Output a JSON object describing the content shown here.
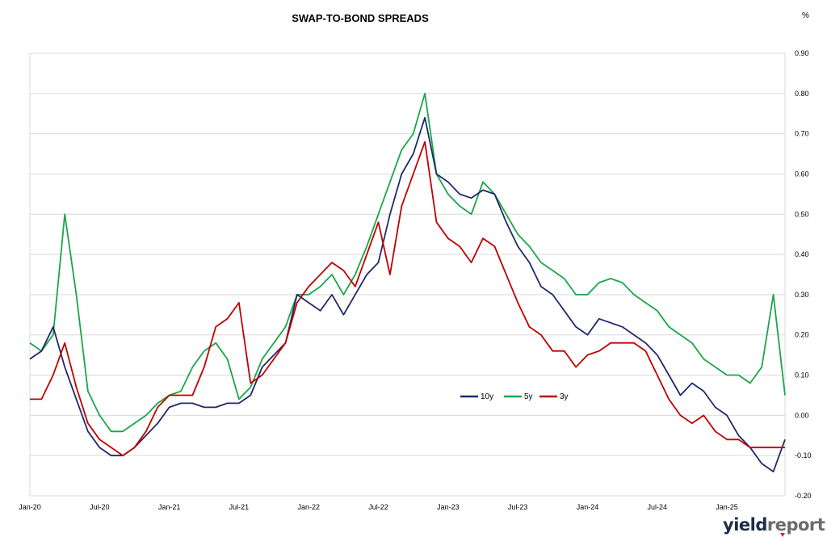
{
  "chart_data": {
    "type": "line",
    "title": "SWAP-TO-BOND SPREADS",
    "unit_label": "%",
    "xlabel": "",
    "ylabel": "",
    "x_ticks": [
      "Jan-20",
      "Jul-20",
      "Jan-21",
      "Jul-21",
      "Jan-22",
      "Jul-22",
      "Jan-23",
      "Jul-23",
      "Jan-24",
      "Jul-24",
      "Jan-25"
    ],
    "y_ticks": [
      "0.90",
      "0.80",
      "0.70",
      "0.60",
      "0.50",
      "0.40",
      "0.30",
      "0.20",
      "0.10",
      "0.00",
      "-0.10",
      "-0.20"
    ],
    "ylim": [
      -0.2,
      0.9
    ],
    "xlim": [
      "2020-01",
      "2025-06"
    ],
    "grid": "horizontal",
    "legend_position": "center-right",
    "x": [
      "2020-01",
      "2020-02",
      "2020-03",
      "2020-04",
      "2020-05",
      "2020-06",
      "2020-07",
      "2020-08",
      "2020-09",
      "2020-10",
      "2020-11",
      "2020-12",
      "2021-01",
      "2021-02",
      "2021-03",
      "2021-04",
      "2021-05",
      "2021-06",
      "2021-07",
      "2021-08",
      "2021-09",
      "2021-10",
      "2021-11",
      "2021-12",
      "2022-01",
      "2022-02",
      "2022-03",
      "2022-04",
      "2022-05",
      "2022-06",
      "2022-07",
      "2022-08",
      "2022-09",
      "2022-10",
      "2022-11",
      "2022-12",
      "2023-01",
      "2023-02",
      "2023-03",
      "2023-04",
      "2023-05",
      "2023-06",
      "2023-07",
      "2023-08",
      "2023-09",
      "2023-10",
      "2023-11",
      "2023-12",
      "2024-01",
      "2024-02",
      "2024-03",
      "2024-04",
      "2024-05",
      "2024-06",
      "2024-07",
      "2024-08",
      "2024-09",
      "2024-10",
      "2024-11",
      "2024-12",
      "2025-01",
      "2025-02",
      "2025-03",
      "2025-04",
      "2025-05",
      "2025-06"
    ],
    "series": [
      {
        "name": "10y",
        "color": "#1f2a6b",
        "values": [
          0.14,
          0.16,
          0.22,
          0.12,
          0.04,
          -0.04,
          -0.08,
          -0.1,
          -0.1,
          -0.08,
          -0.05,
          -0.02,
          0.02,
          0.03,
          0.03,
          0.02,
          0.02,
          0.03,
          0.03,
          0.05,
          0.12,
          0.15,
          0.18,
          0.3,
          0.28,
          0.26,
          0.3,
          0.25,
          0.3,
          0.35,
          0.38,
          0.5,
          0.6,
          0.65,
          0.74,
          0.6,
          0.58,
          0.55,
          0.54,
          0.56,
          0.55,
          0.48,
          0.42,
          0.38,
          0.32,
          0.3,
          0.26,
          0.22,
          0.2,
          0.24,
          0.23,
          0.22,
          0.2,
          0.18,
          0.15,
          0.1,
          0.05,
          0.08,
          0.06,
          0.02,
          0.0,
          -0.05,
          -0.08,
          -0.12,
          -0.14,
          -0.06
        ]
      },
      {
        "name": "5y",
        "color": "#1aa64a",
        "values": [
          0.18,
          0.16,
          0.2,
          0.5,
          0.3,
          0.06,
          0.0,
          -0.04,
          -0.04,
          -0.02,
          0.0,
          0.03,
          0.05,
          0.06,
          0.12,
          0.16,
          0.18,
          0.14,
          0.04,
          0.07,
          0.14,
          0.18,
          0.22,
          0.3,
          0.3,
          0.32,
          0.35,
          0.3,
          0.35,
          0.42,
          0.5,
          0.58,
          0.66,
          0.7,
          0.8,
          0.6,
          0.55,
          0.52,
          0.5,
          0.58,
          0.55,
          0.5,
          0.45,
          0.42,
          0.38,
          0.36,
          0.34,
          0.3,
          0.3,
          0.33,
          0.34,
          0.33,
          0.3,
          0.28,
          0.26,
          0.22,
          0.2,
          0.18,
          0.14,
          0.12,
          0.1,
          0.1,
          0.08,
          0.12,
          0.3,
          0.05
        ]
      },
      {
        "name": "3y",
        "color": "#c00000",
        "values": [
          0.04,
          0.04,
          0.1,
          0.18,
          0.07,
          -0.02,
          -0.06,
          -0.08,
          -0.1,
          -0.08,
          -0.04,
          0.02,
          0.05,
          0.05,
          0.05,
          0.12,
          0.22,
          0.24,
          0.28,
          0.08,
          0.1,
          0.14,
          0.18,
          0.28,
          0.32,
          0.35,
          0.38,
          0.36,
          0.32,
          0.4,
          0.48,
          0.35,
          0.52,
          0.6,
          0.68,
          0.48,
          0.44,
          0.42,
          0.38,
          0.44,
          0.42,
          0.35,
          0.28,
          0.22,
          0.2,
          0.16,
          0.16,
          0.12,
          0.15,
          0.16,
          0.18,
          0.18,
          0.18,
          0.16,
          0.1,
          0.04,
          0.0,
          -0.02,
          0.0,
          -0.04,
          -0.06,
          -0.06,
          -0.08,
          -0.08,
          -0.08,
          -0.08
        ]
      }
    ]
  }
}
